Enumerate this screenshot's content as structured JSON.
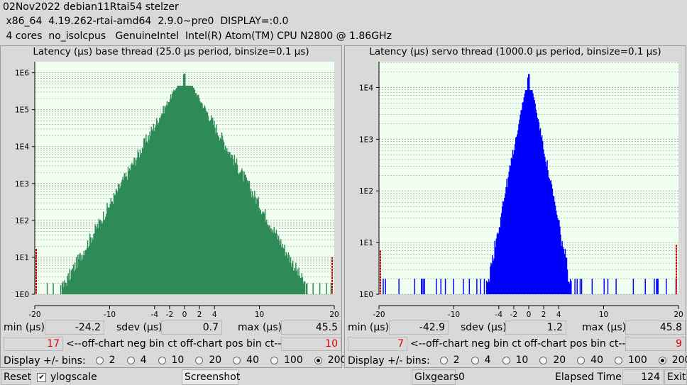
{
  "header": {
    "line1": "02Nov2022 debian11Rtai54 stelzer",
    "line2": " x86_64  4.19.262-rtai-amd64  2.9.0~pre0  DISPLAY=:0.0",
    "line3": " 4 cores  no_isolcpus   GenuineIntel  Intel(R) Atom(TM) CPU N2800 @ 1.86GHz"
  },
  "colors": {
    "base_bars": "#2e8b57",
    "servo_bars": "#0000ff",
    "plot_bg": "#f0fff0",
    "offchart_marker": "#cc0000"
  },
  "base": {
    "title": "Latency (µs) base thread (25.0 µs period, binsize=0.1 µs)",
    "min_label": "min (µs)",
    "min": "-24.2",
    "sdev_label": "sdev (µs)",
    "sdev": "0.7",
    "max_label": "max (µs)",
    "max": "45.5",
    "neg_ct": "17",
    "offchart_label": "<--off-chart neg bin ct   off-chart pos bin ct-->",
    "pos_ct": "10",
    "display_label": "Display +/- bins:",
    "bins": [
      "2",
      "4",
      "10",
      "20",
      "40",
      "100",
      "200"
    ],
    "selected_bin": "200"
  },
  "servo": {
    "title": "Latency (µs) servo thread (1000.0 µs period, binsize=0.1 µs)",
    "min_label": "min (µs)",
    "min": "-42.9",
    "sdev_label": "sdev (µs)",
    "sdev": "1.2",
    "max_label": "max (µs)",
    "max": "45.8",
    "neg_ct": "7",
    "offchart_label": "<--off-chart neg bin ct   off-chart pos bin ct-->",
    "pos_ct": "9",
    "display_label": "Display +/- bins:",
    "bins": [
      "2",
      "4",
      "10",
      "20",
      "40",
      "100",
      "200"
    ],
    "selected_bin": "200"
  },
  "bottom": {
    "reset": "Reset",
    "ylog": "ylogscale",
    "ylog_checked": true,
    "screenshot": "Screenshot",
    "glxgears": "Glxgears",
    "glx_count": "0",
    "elapsed_label": "Elapsed Time:",
    "elapsed": "124",
    "exit": "Exit"
  },
  "chart_data": [
    {
      "type": "bar",
      "title": "Latency (µs) base thread (25.0 µs period, binsize=0.1 µs)",
      "x_ticks": [
        "-20",
        "-10",
        "-4",
        "-2",
        "0",
        "2",
        "4",
        "10",
        "20"
      ],
      "y_ticks": [
        "1E0",
        "1E1",
        "1E2",
        "1E3",
        "1E4",
        "1E5",
        "1E6"
      ],
      "xlim": [
        -20,
        20
      ],
      "y_scale": "log",
      "ylim_exp": [
        0,
        6.3
      ],
      "peak_count_log10": 6.0,
      "tail_width_us": 2.8,
      "offchart_neg": 17,
      "offchart_pos": 10
    },
    {
      "type": "bar",
      "title": "Latency (µs) servo thread (1000.0 µs period, binsize=0.1 µs)",
      "x_ticks": [
        "-20",
        "-10",
        "-4",
        "-2",
        "0",
        "2",
        "4",
        "10",
        "20"
      ],
      "y_ticks": [
        "1E0",
        "1E1",
        "1E2",
        "1E3",
        "1E4"
      ],
      "xlim": [
        -20,
        20
      ],
      "y_scale": "log",
      "ylim_exp": [
        0,
        4.5
      ],
      "peak_count_log10": 4.3,
      "tail_width_us": 1.35,
      "offchart_neg": 7,
      "offchart_pos": 9
    }
  ]
}
